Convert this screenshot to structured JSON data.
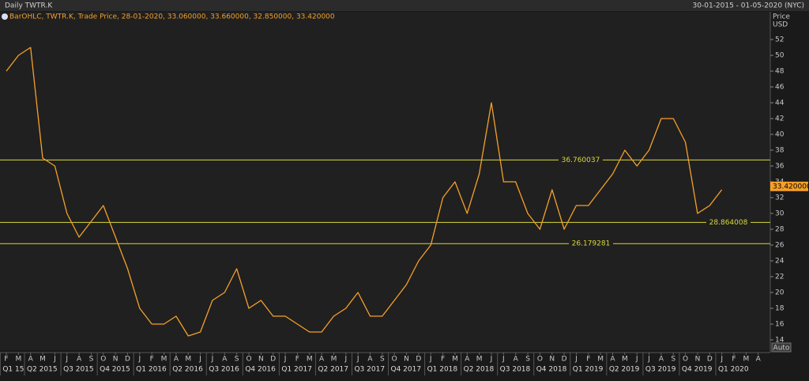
{
  "chart_data": {
    "type": "line",
    "title": "Daily TWTR.K",
    "date_range": "30-01-2015 - 01-05-2020 (NYC)",
    "y_axis_title": [
      "Price",
      "USD"
    ],
    "auto_button": "Auto",
    "categories": [
      "F",
      "M",
      "A",
      "M",
      "J",
      "J",
      "A",
      "S",
      "O",
      "N",
      "D",
      "J",
      "F",
      "M",
      "A",
      "M",
      "J",
      "J",
      "A",
      "S",
      "O",
      "N",
      "D",
      "J",
      "F",
      "M",
      "A",
      "M",
      "J",
      "J",
      "A",
      "S",
      "O",
      "N",
      "D",
      "J",
      "F",
      "M",
      "A",
      "M",
      "J",
      "J",
      "A",
      "S",
      "O",
      "N",
      "D",
      "J",
      "F",
      "M",
      "A",
      "M",
      "J",
      "J",
      "A",
      "S",
      "O",
      "N",
      "D",
      "J",
      "F",
      "M",
      "A"
    ],
    "quarters": [
      "Q1 15",
      "Q2 2015",
      "Q3 2015",
      "Q4 2015",
      "Q1 2016",
      "Q2 2016",
      "Q3 2016",
      "Q4 2016",
      "Q1 2017",
      "Q2 2017",
      "Q3 2017",
      "Q4 2017",
      "Q1 2018",
      "Q2 2018",
      "Q3 2018",
      "Q4 2018",
      "Q1 2019",
      "Q2 2019",
      "Q3 2019",
      "Q4 2019",
      "Q1 2020"
    ],
    "series": [
      {
        "name": "BarOHLC, TWTR.K, Trade Price, 28-01-2020, 33.060000, 33.660000, 32.850000, 33.420000",
        "color": "#f5a02a",
        "values": [
          48,
          50,
          51,
          37,
          36,
          30,
          27,
          29,
          31,
          27,
          23,
          18,
          16,
          16,
          17,
          14.5,
          15,
          19,
          20,
          23,
          18,
          19,
          17,
          17,
          16,
          15,
          15,
          17,
          18,
          20,
          17,
          17,
          19,
          21,
          24,
          26,
          32,
          34,
          30,
          35,
          44,
          34,
          34,
          30,
          28,
          33,
          28,
          31,
          31,
          33,
          35,
          38,
          36,
          38,
          42,
          42,
          39,
          30,
          31,
          33,
          null,
          null,
          null
        ]
      }
    ],
    "levels": [
      36.760037,
      28.864008,
      26.179281
    ],
    "level_color": "#d8d83c",
    "last_price": {
      "value": 33.42,
      "label": "33.420000"
    },
    "ylim": [
      12.8,
      55.5
    ],
    "yticks": [
      14,
      16,
      18,
      20,
      22,
      24,
      26,
      28,
      30,
      32,
      34,
      36,
      38,
      40,
      42,
      44,
      46,
      48,
      50,
      52
    ]
  }
}
